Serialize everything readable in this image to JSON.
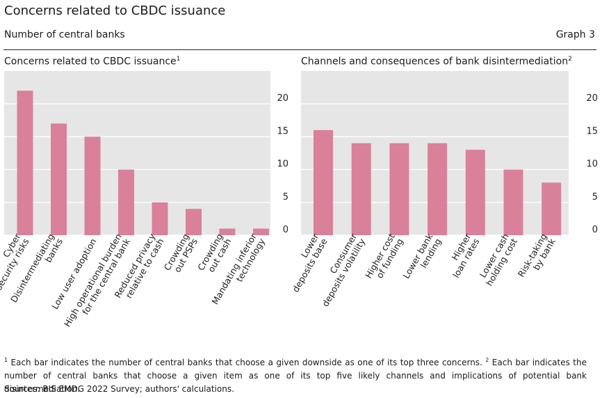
{
  "header": {
    "title": "Concerns related to CBDC issuance",
    "subtitle": "Number of central banks",
    "graph_number": "Graph 3"
  },
  "colors": {
    "bar": "#d9819a",
    "panel_bg": "#e6e6e6",
    "gridline": "#ffffff"
  },
  "chart_data": [
    {
      "type": "bar",
      "title": "Concerns related to CBDC issuance",
      "title_sup": "1",
      "categories": [
        "Cyber\nsecurity risks",
        "Disintermediating\nbanks",
        "Low user adoption",
        "High operational burden\nfor the central bank",
        "Reduced privacy\nrelative to cash",
        "Crowding\nout PSPs",
        "Crowding\nout cash",
        "Mandating inferior\ntechnology"
      ],
      "values": [
        22,
        17,
        15,
        10,
        5,
        4,
        1,
        1
      ],
      "ylim": [
        0,
        25
      ],
      "yticks": [
        0,
        5,
        10,
        15,
        20
      ],
      "xlabel": "",
      "ylabel": "",
      "grid": true
    },
    {
      "type": "bar",
      "title": "Channels and consequences of bank disintermediation",
      "title_sup": "2",
      "categories": [
        "Lower\ndeposits base",
        "Consumer\ndeposits volatility",
        "Higher cost\nof funding",
        "Lower bank\nlending",
        "Higher\nloan rates",
        "Lower cash\nholding cost",
        "Risk-taking\nby bank"
      ],
      "values": [
        16,
        14,
        14,
        14,
        13,
        10,
        8
      ],
      "ylim": [
        0,
        25
      ],
      "yticks": [
        0,
        5,
        10,
        15,
        20
      ],
      "xlabel": "",
      "ylabel": "",
      "grid": true
    }
  ],
  "footnotes": {
    "note1_marker": "1",
    "note1_text": " Each bar indicates the number of central banks that choose a given downside as one of its top three concerns.  ",
    "note2_marker": "2",
    "note2_text": " Each bar indicates the number of central banks that choose a given item as one of its top five likely channels and implications of potential bank disintermediation.",
    "sources": "Sources: BIS EMDG 2022 Survey; authors' calculations."
  }
}
